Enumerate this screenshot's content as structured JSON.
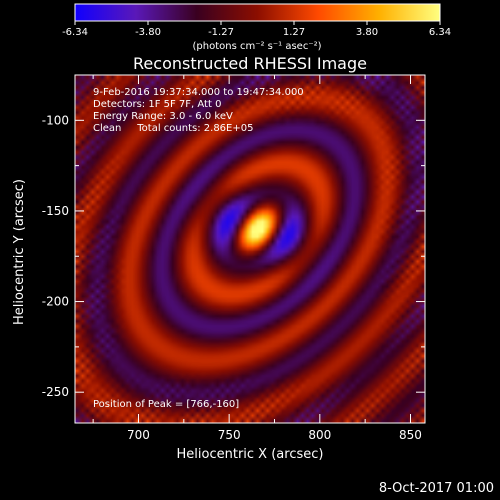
{
  "colorbar": {
    "tick_labels": [
      "-6.34",
      "-3.80",
      "-1.27",
      "1.27",
      "3.80",
      "6.34"
    ],
    "unit_label": "(photons cm⁻² s⁻¹ asec⁻²)",
    "colors": [
      "#1000ff",
      "#5a18b8",
      "#3a0020",
      "#8c0e00",
      "#ff4a00",
      "#ffb000",
      "#ffff80"
    ]
  },
  "plot": {
    "title": "Reconstructed RHESSI Image",
    "info_lines": [
      "9-Feb-2016 19:37:34.000 to 19:47:34.000",
      "Detectors: 1F 5F 7F, Att 0",
      "Energy Range: 3.0 - 6.0 keV",
      "Clean     Total counts: 2.86E+05"
    ],
    "peak_text": "Position of Peak = [766,-160]"
  },
  "chart_data": {
    "type": "heatmap",
    "title": "Reconstructed RHESSI Image",
    "xlabel": "Heliocentric X (arcsec)",
    "ylabel": "Heliocentric Y (arcsec)",
    "xlim": [
      665,
      858
    ],
    "ylim": [
      -267,
      -75
    ],
    "xticks": [
      700,
      750,
      800,
      850
    ],
    "yticks": [
      -100,
      -150,
      -200,
      -250
    ],
    "colorbar_range": [
      -6.34,
      6.34
    ],
    "peak": {
      "x": 766,
      "y": -160,
      "value": 6.34
    }
  },
  "footer": {
    "timestamp": "8-Oct-2017 01:00"
  }
}
